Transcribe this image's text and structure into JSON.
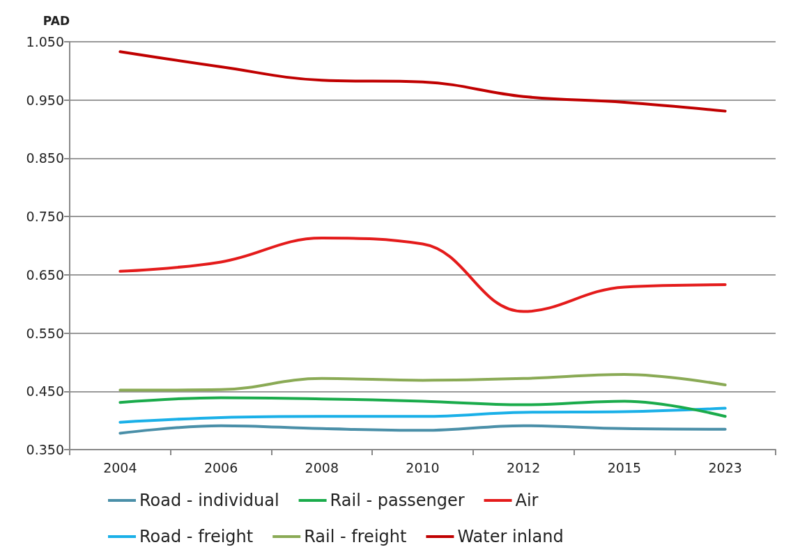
{
  "chart_data": {
    "type": "line",
    "ylabel": "PAD",
    "categories": [
      "2004",
      "2006",
      "2008",
      "2010",
      "2012",
      "2015",
      "2023"
    ],
    "series": [
      {
        "name": "Road - individual",
        "color": "#4a8fa8",
        "values": [
          0.378,
          0.391,
          0.386,
          0.383,
          0.391,
          0.386,
          0.385
        ]
      },
      {
        "name": "Road - freight",
        "color": "#1ab0e8",
        "values": [
          0.397,
          0.405,
          0.407,
          0.407,
          0.414,
          0.415,
          0.421
        ]
      },
      {
        "name": "Rail - passenger",
        "color": "#1aab4b",
        "values": [
          0.431,
          0.439,
          0.437,
          0.433,
          0.427,
          0.433,
          0.407
        ]
      },
      {
        "name": "Rail - freight",
        "color": "#8aaa55",
        "values": [
          0.452,
          0.453,
          0.472,
          0.469,
          0.472,
          0.479,
          0.461
        ]
      },
      {
        "name": "Air",
        "color": "#e41b1b",
        "values": [
          0.656,
          0.672,
          0.713,
          0.703,
          0.587,
          0.629,
          0.633
        ]
      },
      {
        "name": "Water inland",
        "color": "#c00000",
        "values": [
          1.033,
          1.007,
          0.984,
          0.981,
          0.956,
          0.946,
          0.931
        ]
      }
    ],
    "ylim": [
      0.35,
      1.05
    ],
    "yticks": [
      {
        "value": 0.35,
        "label": "0.350"
      },
      {
        "value": 0.45,
        "label": "0.450"
      },
      {
        "value": 0.55,
        "label": "0.550"
      },
      {
        "value": 0.65,
        "label": "0.650"
      },
      {
        "value": 0.75,
        "label": "0.750"
      },
      {
        "value": 0.85,
        "label": "0.850"
      },
      {
        "value": 0.95,
        "label": "0.950"
      },
      {
        "value": 1.05,
        "label": "1.050"
      }
    ],
    "grid": "y",
    "legend": "bottom",
    "marker": "none",
    "line_style": "solid"
  }
}
